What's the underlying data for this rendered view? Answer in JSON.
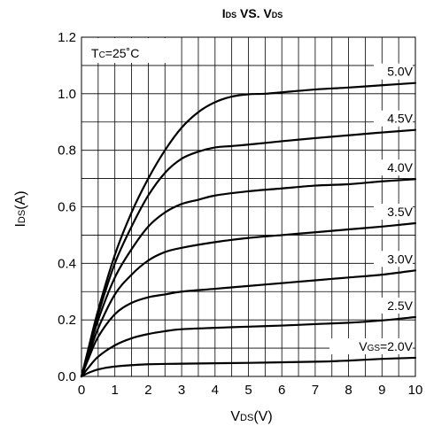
{
  "chart_data": {
    "type": "line",
    "title": {
      "part1_main": "I",
      "part1_sub": "DS",
      "middle": " VS. ",
      "part2_main": "V",
      "part2_sub": "DS"
    },
    "xlabel": {
      "main": "V",
      "sub": "DS",
      "suffix": "(V)"
    },
    "ylabel": {
      "main": "I",
      "sub": "DS",
      "suffix": "(A)"
    },
    "condition": {
      "prefix": "T",
      "sub": "C",
      "value": "=25˚C"
    },
    "xlim": [
      0,
      10
    ],
    "ylim": [
      0,
      1.2
    ],
    "x_ticks": [
      0,
      1,
      2,
      3,
      4,
      5,
      6,
      7,
      8,
      9,
      10
    ],
    "x_tick_labels": [
      "0",
      "1",
      "2",
      "3",
      "4",
      "5",
      "6",
      "7",
      "8",
      "9",
      "10"
    ],
    "y_ticks": [
      0,
      0.2,
      0.4,
      0.6,
      0.8,
      1.0,
      1.2
    ],
    "y_tick_labels": [
      "0.0",
      "0.2",
      "0.4",
      "0.6",
      "0.8",
      "1.0",
      "1.2"
    ],
    "grid": {
      "x_step": 0.5,
      "y_step": 0.1
    },
    "series": [
      {
        "name": "2.0V",
        "label": {
          "prefix": "V",
          "sub": "GS",
          "suffix": "=2.0V"
        },
        "x": [
          0,
          0.2,
          0.5,
          1,
          2,
          3,
          5,
          7,
          8,
          9,
          10
        ],
        "y": [
          0,
          0.012,
          0.025,
          0.035,
          0.043,
          0.045,
          0.048,
          0.052,
          0.056,
          0.062,
          0.066
        ]
      },
      {
        "name": "2.5V",
        "label": {
          "prefix": "",
          "sub": "",
          "suffix": "2.5V"
        },
        "x": [
          0,
          0.2,
          0.5,
          1,
          1.5,
          2,
          2.5,
          3,
          4,
          5,
          6,
          7,
          8,
          9,
          10
        ],
        "y": [
          0,
          0.03,
          0.07,
          0.11,
          0.135,
          0.15,
          0.16,
          0.167,
          0.172,
          0.176,
          0.18,
          0.185,
          0.19,
          0.198,
          0.21
        ]
      },
      {
        "name": "3.0V",
        "label": {
          "prefix": "",
          "sub": "",
          "suffix": "3.0V"
        },
        "x": [
          0,
          0.2,
          0.5,
          1,
          1.5,
          2,
          2.5,
          3,
          4,
          5,
          6,
          7,
          8,
          9,
          10
        ],
        "y": [
          0,
          0.06,
          0.14,
          0.22,
          0.26,
          0.28,
          0.29,
          0.3,
          0.31,
          0.32,
          0.33,
          0.34,
          0.35,
          0.36,
          0.375
        ]
      },
      {
        "name": "3.5V",
        "label": {
          "prefix": "",
          "sub": "",
          "suffix": "3.5V"
        },
        "x": [
          0,
          0.2,
          0.5,
          1,
          1.5,
          2,
          2.5,
          3,
          4,
          5,
          6,
          7,
          8,
          9,
          10
        ],
        "y": [
          0,
          0.07,
          0.17,
          0.29,
          0.36,
          0.41,
          0.44,
          0.455,
          0.475,
          0.49,
          0.5,
          0.51,
          0.52,
          0.53,
          0.542
        ]
      },
      {
        "name": "4.0V",
        "label": {
          "prefix": "",
          "sub": "",
          "suffix": "4.0V"
        },
        "x": [
          0,
          0.2,
          0.5,
          1,
          1.5,
          2,
          2.5,
          3,
          3.5,
          4,
          5,
          6,
          7,
          8,
          9,
          10
        ],
        "y": [
          0,
          0.08,
          0.2,
          0.35,
          0.45,
          0.53,
          0.58,
          0.61,
          0.625,
          0.64,
          0.655,
          0.665,
          0.675,
          0.68,
          0.69,
          0.698
        ]
      },
      {
        "name": "4.5V",
        "label": {
          "prefix": "",
          "sub": "",
          "suffix": "4.5V"
        },
        "x": [
          0,
          0.2,
          0.5,
          1,
          1.5,
          2,
          2.5,
          3,
          3.5,
          4,
          4.5,
          5,
          6,
          7,
          8,
          9,
          10
        ],
        "y": [
          0,
          0.09,
          0.22,
          0.4,
          0.53,
          0.64,
          0.72,
          0.77,
          0.795,
          0.81,
          0.815,
          0.82,
          0.832,
          0.843,
          0.853,
          0.863,
          0.872
        ]
      },
      {
        "name": "5.0V",
        "label": {
          "prefix": "",
          "sub": "",
          "suffix": "5.0V"
        },
        "x": [
          0,
          0.2,
          0.5,
          1,
          1.5,
          2,
          2.5,
          3,
          3.5,
          4,
          4.5,
          5,
          5.5,
          6,
          7,
          8,
          9,
          10
        ],
        "y": [
          0,
          0.095,
          0.235,
          0.43,
          0.58,
          0.7,
          0.8,
          0.88,
          0.935,
          0.97,
          0.99,
          0.998,
          1.0,
          1.005,
          1.015,
          1.022,
          1.03,
          1.038
        ]
      }
    ]
  }
}
